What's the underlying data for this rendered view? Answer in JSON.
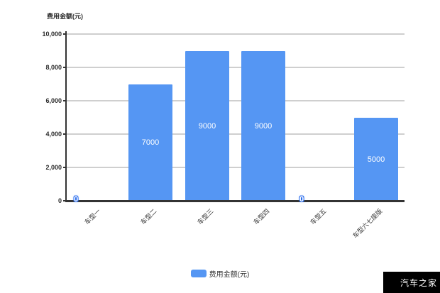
{
  "chart_data": {
    "type": "bar",
    "title": "",
    "y_axis_title": "费用金额(元)",
    "categories": [
      "车型一",
      "车型二",
      "车型三",
      "车型四",
      "车型五",
      "车型六七座版"
    ],
    "values": [
      0,
      7000,
      9000,
      9000,
      0,
      5000
    ],
    "bar_labels": [
      "0",
      "7000",
      "9000",
      "9000",
      "0",
      "5000"
    ],
    "y_ticks": [
      {
        "value": 10000,
        "label": "10,000"
      },
      {
        "value": 8000,
        "label": "8,000"
      },
      {
        "value": 6000,
        "label": "6,000"
      },
      {
        "value": 4000,
        "label": "4,000"
      },
      {
        "value": 2000,
        "label": "2,000"
      },
      {
        "value": 0,
        "label": "0"
      }
    ],
    "ylim": [
      0,
      10000
    ],
    "grid": true,
    "legend_position": "bottom",
    "legend": [
      {
        "label": "费用金额(元)",
        "color": "#5596f3"
      }
    ]
  },
  "colors": {
    "bar": "#5596f3",
    "zero_label_outline": "#2d6fed",
    "gridline": "#cfcfcf",
    "axis": "#333333",
    "text": "#333333",
    "bar_value_text": "#ffffff",
    "background": "#ffffff",
    "watermark_bg": "#000000",
    "watermark_text": "#ffffff"
  },
  "watermark": "汽车之家"
}
